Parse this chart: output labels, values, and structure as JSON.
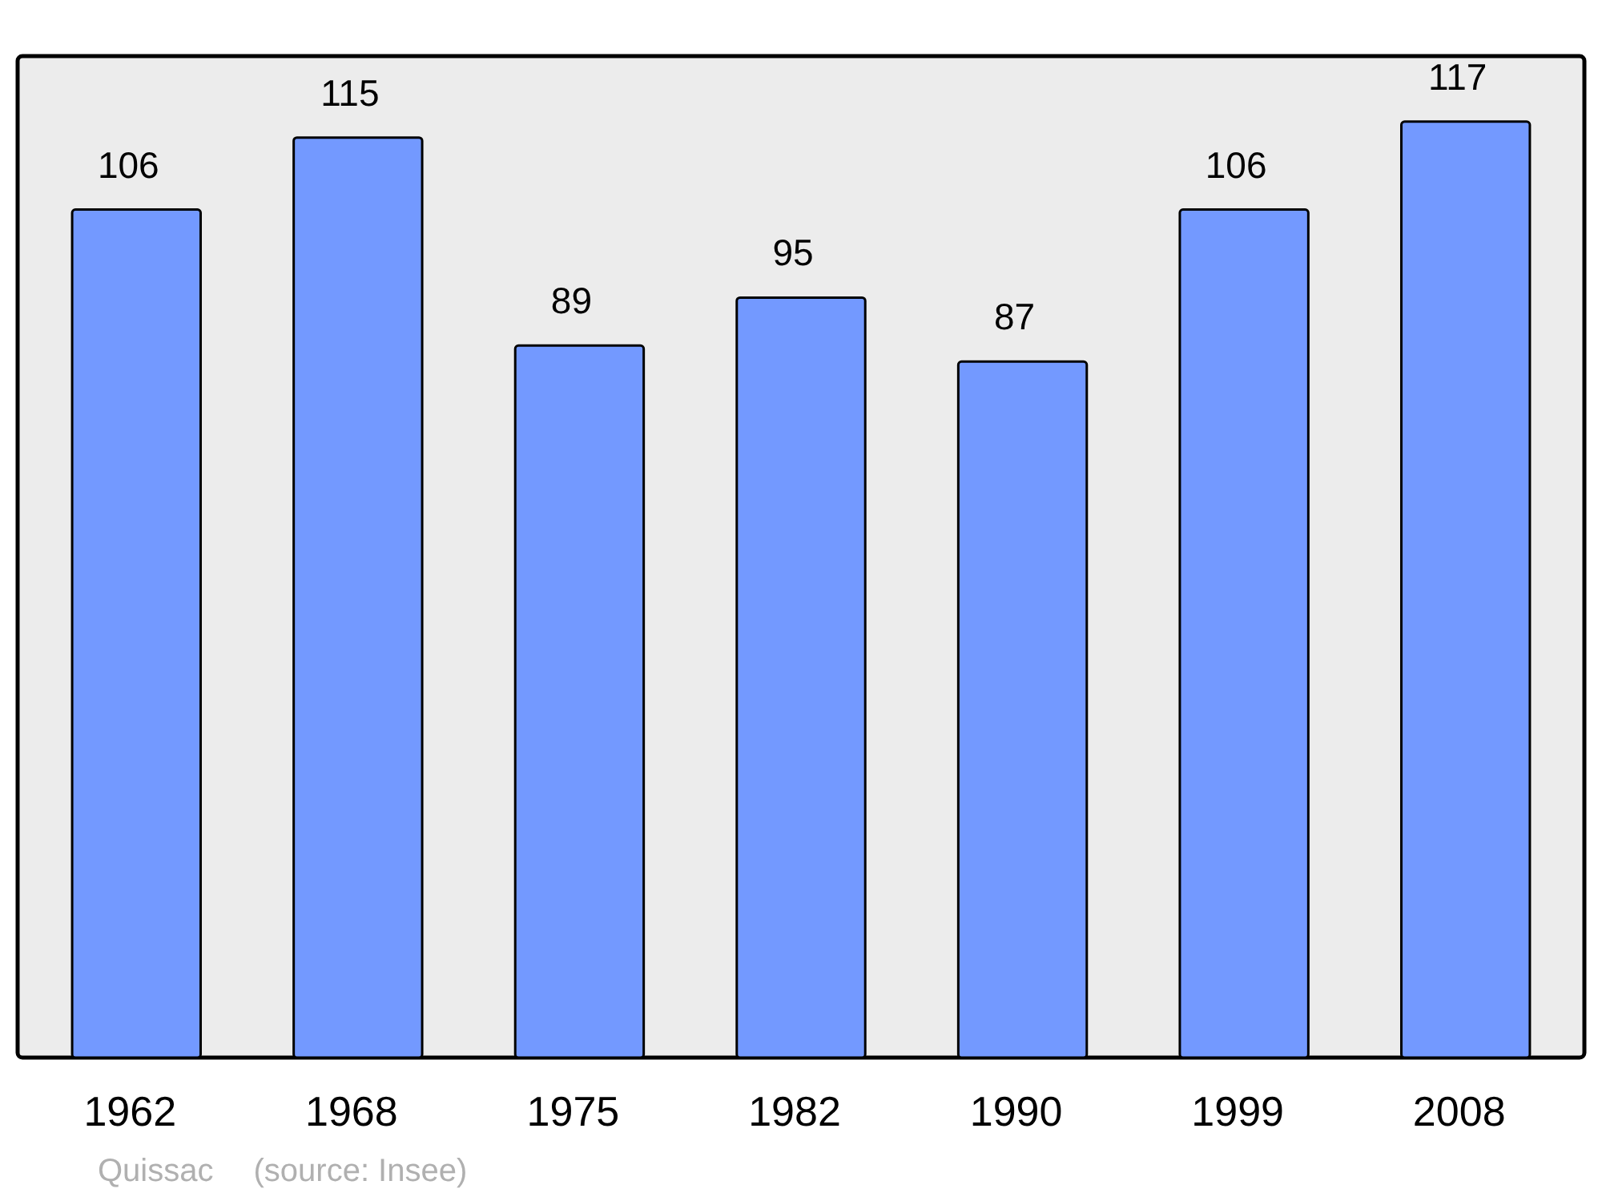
{
  "chart_data": {
    "type": "bar",
    "categories": [
      "1962",
      "1968",
      "1975",
      "1982",
      "1990",
      "1999",
      "2008"
    ],
    "values": [
      106,
      115,
      89,
      95,
      87,
      106,
      117
    ],
    "color": "#7399ff",
    "data_labels": true,
    "annotations": [
      "Quissac",
      "(source: Insee)"
    ]
  }
}
